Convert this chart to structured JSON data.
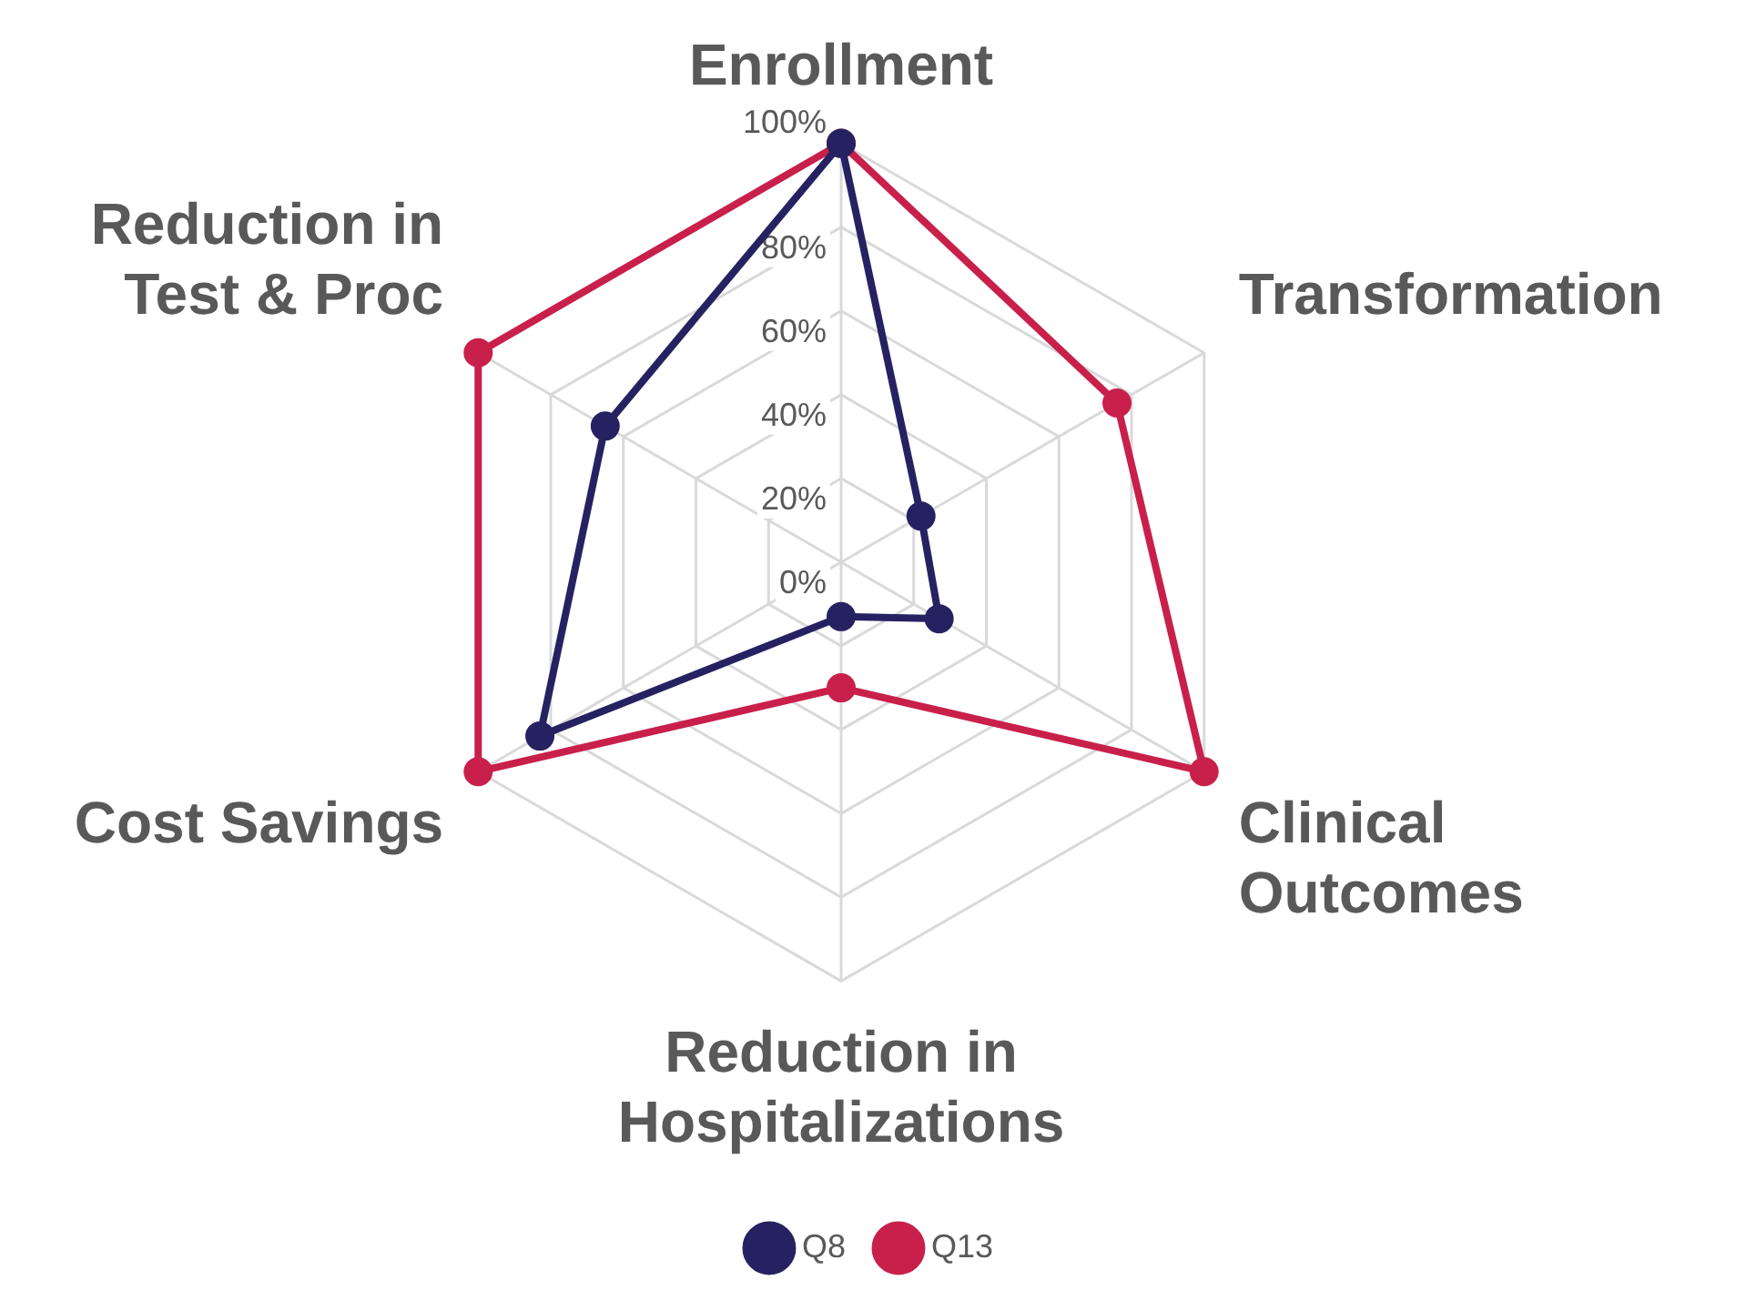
{
  "chart_data": {
    "type": "radar",
    "categories": [
      "Enrollment",
      "Transformation",
      "Clinical Outcomes",
      "Reduction in Hospitalizations",
      "Cost Savings",
      "Reduction in Test & Proc"
    ],
    "series": [
      {
        "name": "Q8",
        "color": "#262262",
        "values": [
          100,
          22,
          27,
          13,
          83,
          65
        ]
      },
      {
        "name": "Q13",
        "color": "#c8204b",
        "values": [
          100,
          76,
          100,
          30,
          100,
          100
        ]
      }
    ],
    "ylim": [
      0,
      100
    ],
    "yticks": [
      {
        "value": 0,
        "label": "0%"
      },
      {
        "value": 20,
        "label": "20%"
      },
      {
        "value": 40,
        "label": "40%"
      },
      {
        "value": 60,
        "label": "60%"
      },
      {
        "value": 80,
        "label": "80%"
      },
      {
        "value": 100,
        "label": "100%"
      }
    ],
    "grid": true,
    "legend": "bottom",
    "marker": "circle",
    "line_style": "solid"
  }
}
